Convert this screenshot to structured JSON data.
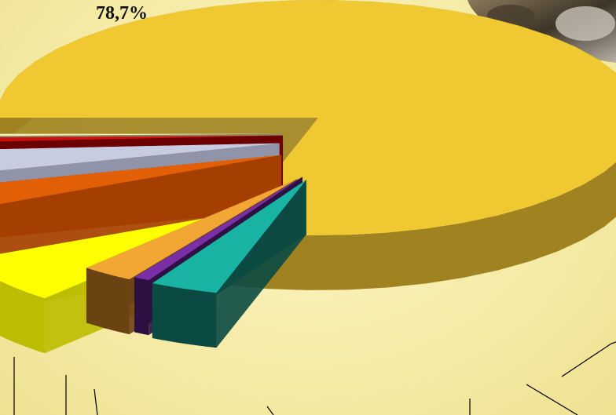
{
  "chart_data": {
    "type": "pie",
    "style": "3d-exploded",
    "data_labels": [
      "78,7%"
    ],
    "slices": [
      {
        "value": 78.7,
        "color": "#f0c832",
        "side": "#a08320"
      },
      {
        "value": 3.4,
        "color": "#19b3a3",
        "side": "#0b4a43"
      },
      {
        "value": 0.8,
        "color": "#7a2fa6",
        "side": "#2e0f42"
      },
      {
        "value": 2.6,
        "color": "#f2a634",
        "side": "#6b4313"
      },
      {
        "value": 6.5,
        "color": "#ffff00",
        "side": "#bdbd00"
      },
      {
        "value": 2.9,
        "color": "#e35f06",
        "side": "#a43d00"
      },
      {
        "value": 3.2,
        "color": "#c8cce0",
        "side": "#9096ab"
      },
      {
        "value": 0.6,
        "color": "#cc1010",
        "side": "#6a0000"
      },
      {
        "value": 0.3,
        "color": "#f5f0b8",
        "side": "#8c8860"
      }
    ]
  }
}
